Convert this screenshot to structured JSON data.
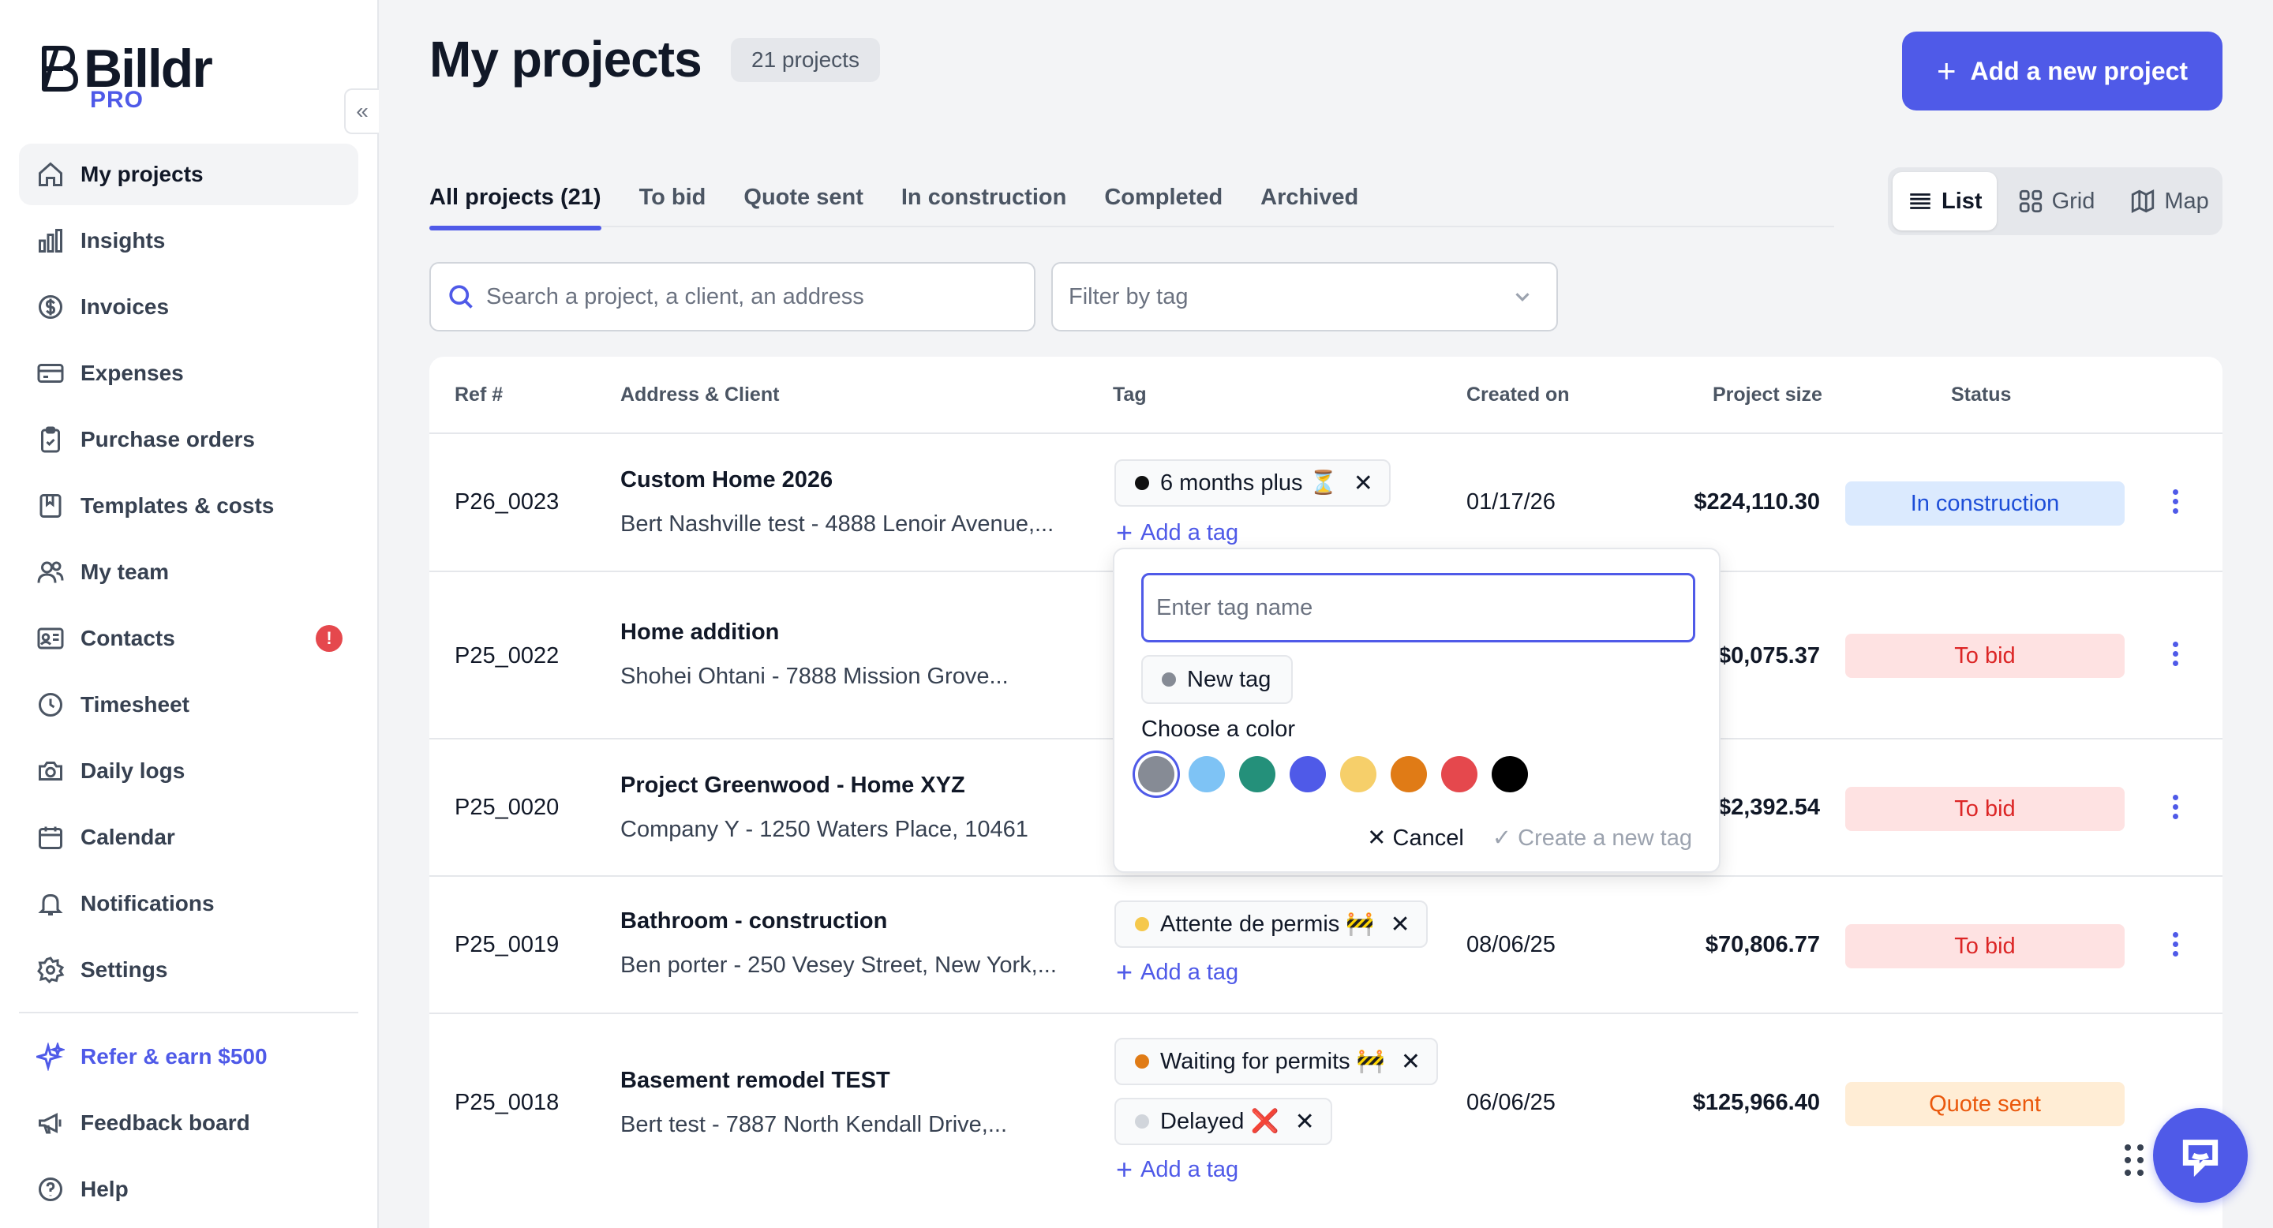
{
  "brand": {
    "name": "Billdr",
    "tier": "PRO"
  },
  "sidebar": {
    "items": [
      {
        "label": "My projects",
        "icon": "home-icon",
        "active": true
      },
      {
        "label": "Insights",
        "icon": "bar-chart-icon"
      },
      {
        "label": "Invoices",
        "icon": "dollar-circle-icon"
      },
      {
        "label": "Expenses",
        "icon": "credit-card-icon"
      },
      {
        "label": "Purchase orders",
        "icon": "clipboard-icon"
      },
      {
        "label": "Templates & costs",
        "icon": "book-icon"
      },
      {
        "label": "My team",
        "icon": "users-icon"
      },
      {
        "label": "Contacts",
        "icon": "id-card-icon",
        "alert": "!"
      },
      {
        "label": "Timesheet",
        "icon": "clock-icon"
      },
      {
        "label": "Daily logs",
        "icon": "camera-icon"
      },
      {
        "label": "Calendar",
        "icon": "calendar-icon"
      },
      {
        "label": "Notifications",
        "icon": "bell-icon"
      },
      {
        "label": "Settings",
        "icon": "gear-icon"
      }
    ],
    "footer": [
      {
        "label": "Refer & earn $500",
        "icon": "sparkle-icon"
      },
      {
        "label": "Feedback board",
        "icon": "megaphone-icon"
      },
      {
        "label": "Help",
        "icon": "help-circle-icon"
      }
    ]
  },
  "header": {
    "title": "My projects",
    "count": "21 projects",
    "add_button": "Add a new project"
  },
  "tabs": [
    "All projects (21)",
    "To bid",
    "Quote sent",
    "In construction",
    "Completed",
    "Archived"
  ],
  "views": [
    "List",
    "Grid",
    "Map"
  ],
  "search": {
    "placeholder": "Search a project, a client, an address"
  },
  "filter": {
    "placeholder": "Filter by tag"
  },
  "table": {
    "columns": [
      "Ref #",
      "Address & Client",
      "Tag",
      "Created on",
      "Project size",
      "Status"
    ],
    "rows": [
      {
        "ref": "P26_0023",
        "name": "Custom Home 2026",
        "client": "Bert Nashville test - 4888 Lenoir Avenue,...",
        "created": "01/17/26",
        "size": "$224,110.30",
        "status": "In construction"
      },
      {
        "ref": "P25_0022",
        "name": "Home addition",
        "client": "Shohei Ohtani - 7888 Mission Grove...",
        "created": "",
        "size": "$0,075.37",
        "status": "To bid"
      },
      {
        "ref": "P25_0020",
        "name": "Project Greenwood - Home XYZ",
        "client": "Company Y - 1250 Waters Place, 10461",
        "created": "",
        "size": "$2,392.54",
        "status": "To bid"
      },
      {
        "ref": "P25_0019",
        "name": "Bathroom - construction",
        "client": "Ben porter - 250 Vesey Street, New York,...",
        "created": "08/06/25",
        "size": "$70,806.77",
        "status": "To bid"
      },
      {
        "ref": "P25_0018",
        "name": "Basement remodel TEST",
        "client": "Bert test - 7887 North Kendall Drive,...",
        "created": "06/06/25",
        "size": "$125,966.40",
        "status": "Quote sent"
      }
    ],
    "tags": {
      "t1": {
        "label": "6 months plus ⏳",
        "color": "#111111"
      },
      "t2": {
        "label": "Attente de permis 🚧",
        "color": "#f5c84c"
      },
      "t3": {
        "label": "Waiting for permits 🚧",
        "color": "#e07b16"
      },
      "t4": {
        "label": "Delayed ❌",
        "color": "#d1d5db"
      }
    },
    "add_tag_label": "Add a tag"
  },
  "tag_popover": {
    "input_placeholder": "Enter tag name",
    "preview_label": "New tag",
    "color_label": "Choose a color",
    "colors": [
      "#868b95",
      "#7ec3f5",
      "#24907a",
      "#4f5ae8",
      "#f6cf6a",
      "#e07b16",
      "#e5484d",
      "#000000"
    ],
    "selected_color": "#868b95",
    "cancel": "Cancel",
    "create": "Create a new tag"
  },
  "colors": {
    "accent": "#4f5ae8"
  }
}
